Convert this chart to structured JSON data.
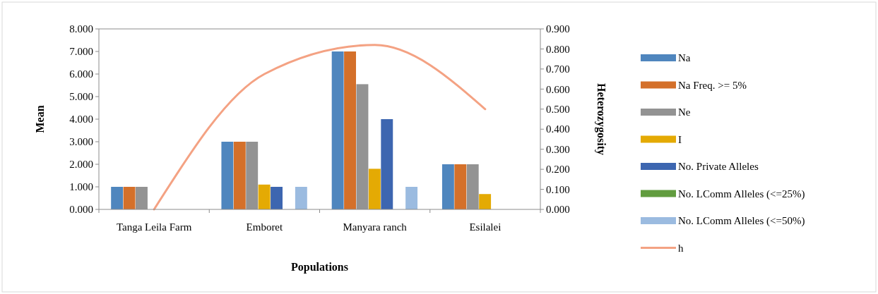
{
  "chart_data": {
    "type": "bar",
    "xlabel": "Populations",
    "ylabel": "Mean",
    "y2label": "Heterozygosity",
    "categories": [
      "Tanga Leila Farm",
      "Emboret",
      "Manyara ranch",
      "Esilalei"
    ],
    "ylim": [
      0,
      8
    ],
    "yticks": [
      {
        "value": 0,
        "label": "0.000"
      },
      {
        "value": 1,
        "label": "1.000"
      },
      {
        "value": 2,
        "label": "2.000"
      },
      {
        "value": 3,
        "label": "3.000"
      },
      {
        "value": 4,
        "label": "4.000"
      },
      {
        "value": 5,
        "label": "5.000"
      },
      {
        "value": 6,
        "label": "6.000"
      },
      {
        "value": 7,
        "label": "7.000"
      },
      {
        "value": 8,
        "label": "8.000"
      }
    ],
    "y2lim": [
      0,
      0.9
    ],
    "y2ticks": [
      {
        "value": 0,
        "label": "0.000"
      },
      {
        "value": 0.1,
        "label": "0.100"
      },
      {
        "value": 0.2,
        "label": "0.200"
      },
      {
        "value": 0.3,
        "label": "0.300"
      },
      {
        "value": 0.4,
        "label": "0.400"
      },
      {
        "value": 0.5,
        "label": "0.500"
      },
      {
        "value": 0.6,
        "label": "0.600"
      },
      {
        "value": 0.7,
        "label": "0.700"
      },
      {
        "value": 0.8,
        "label": "0.800"
      },
      {
        "value": 0.9,
        "label": "0.900"
      }
    ],
    "legend": "right",
    "grid": false,
    "series": [
      {
        "name": "Na",
        "color": "#4f86be",
        "values": [
          1,
          3,
          7,
          2
        ]
      },
      {
        "name": "Na Freq. >= 5%",
        "color": "#d4702a",
        "values": [
          1,
          3,
          7,
          2
        ]
      },
      {
        "name": "Ne",
        "color": "#939393",
        "values": [
          1,
          3,
          5.55,
          2
        ]
      },
      {
        "name": "I",
        "color": "#e4aa04",
        "values": [
          0,
          1.1,
          1.8,
          0.68
        ]
      },
      {
        "name": "No. Private Alleles",
        "color": "#3d66b0",
        "values": [
          0,
          1,
          4,
          0
        ]
      },
      {
        "name": "No. LComm Alleles (<=25%)",
        "color": "#619c3f",
        "values": [
          0,
          0,
          0,
          0
        ]
      },
      {
        "name": "No. LComm Alleles (<=50%)",
        "color": "#9bbbe0",
        "values": [
          0,
          1,
          1,
          0
        ]
      },
      {
        "name": "h",
        "type": "line",
        "axis": "y2",
        "color": "#f4a283",
        "values": [
          0,
          0.675,
          0.82,
          0.5
        ]
      }
    ]
  }
}
